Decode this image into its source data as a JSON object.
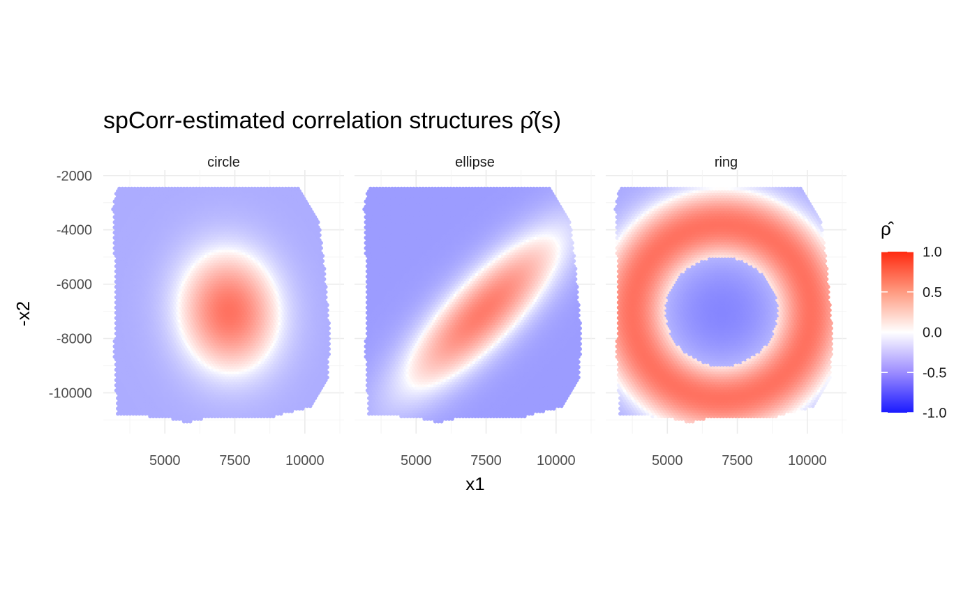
{
  "chart_data": {
    "type": "heatmap",
    "title": "spCorr-estimated correlation structures ρ̂(s)",
    "xlabel": "x1",
    "ylabel": "-x2",
    "panels": [
      {
        "name": "circle",
        "pattern": "blob",
        "center": [
          7300,
          -7000
        ],
        "radii": [
          2000,
          2500
        ],
        "angle": 0.1,
        "peak": 0.6,
        "background": -0.28
      },
      {
        "name": "ellipse",
        "pattern": "ellipse",
        "center": [
          7400,
          -7000
        ],
        "radii": [
          4500,
          1400
        ],
        "angle": 0.8,
        "peak": 0.55,
        "background": -0.35
      },
      {
        "name": "ring",
        "pattern": "ring",
        "center": [
          6950,
          -7000
        ],
        "radius": 3200,
        "width": 1200,
        "peak": 0.6,
        "inner": -0.4,
        "background": -0.3
      }
    ],
    "x_ticks": [
      5000,
      7500,
      10000
    ],
    "x_tick_labels": [
      "5000",
      "7500",
      "10000"
    ],
    "y_ticks": [
      -2000,
      -4000,
      -6000,
      -8000,
      -10000
    ],
    "y_tick_labels": [
      "-2000",
      "-4000",
      "-6000",
      "-8000",
      "-10000"
    ],
    "xlim": [
      2800,
      11400
    ],
    "ylim": [
      -11500,
      -1800
    ],
    "legend": {
      "title": "ρ̂",
      "limits": [
        -1.0,
        1.0
      ],
      "ticks": [
        1.0,
        0.5,
        0.0,
        -0.5,
        -1.0
      ],
      "tick_labels": [
        "1.0",
        "0.5",
        "0.0",
        "-0.5",
        "-1.0"
      ],
      "colors": {
        "low": "#1A1AFF",
        "mid": "#FFFFFF",
        "high": "#FF2A10"
      },
      "placement": "right"
    },
    "grid": true
  }
}
